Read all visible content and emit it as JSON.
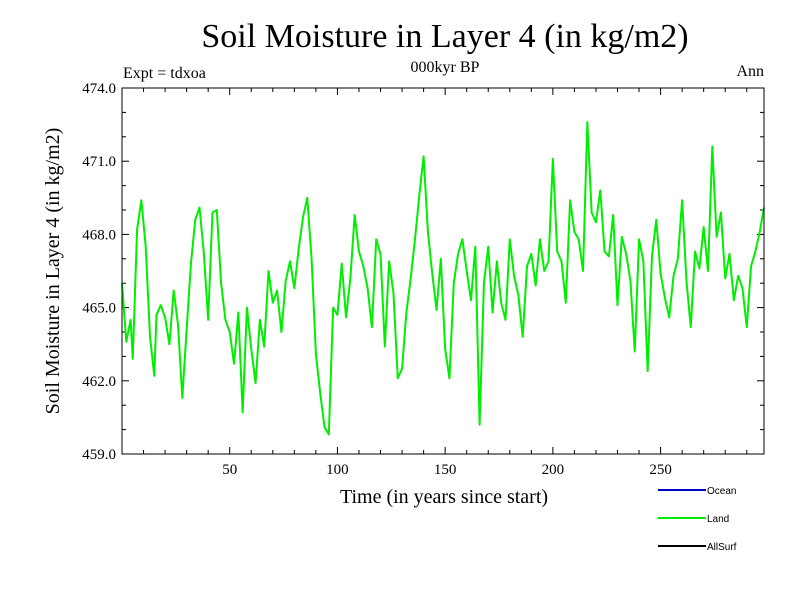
{
  "chart_data": {
    "type": "line",
    "title": "Soil Moisture in Layer 4 (in kg/m2)",
    "subtitle": "000kyr BP",
    "left_note": "Expt = tdxoa",
    "right_note": "Ann",
    "xlabel": "Time (in years since start)",
    "ylabel": "Soil Moisture in Layer 4 (in kg/m2)",
    "xlim": [
      0,
      298
    ],
    "ylim": [
      459.0,
      474.0
    ],
    "x_ticks": [
      50,
      100,
      150,
      200,
      250
    ],
    "x_tick_labels": [
      "50",
      "100",
      "150",
      "200",
      "250"
    ],
    "y_ticks": [
      459.0,
      462.0,
      465.0,
      468.0,
      471.0,
      474.0
    ],
    "y_tick_labels": [
      "459.0",
      "462.0",
      "465.0",
      "468.0",
      "471.0",
      "474.0"
    ],
    "legend": {
      "placement": "bottom-right",
      "entries": [
        {
          "label": "Ocean",
          "color": "#0000cc"
        },
        {
          "label": "Land",
          "color": "#00ee00"
        },
        {
          "label": "AllSurf",
          "color": "#000000"
        }
      ]
    },
    "series": [
      {
        "color": "#00ee00",
        "x": [
          0,
          2,
          4,
          5,
          7,
          9,
          11,
          13,
          15,
          16,
          18,
          20,
          22,
          24,
          26,
          28,
          30,
          32,
          34,
          36,
          38,
          40,
          42,
          44,
          46,
          48,
          50,
          52,
          54,
          56,
          58,
          60,
          62,
          64,
          66,
          68,
          70,
          72,
          74,
          76,
          78,
          80,
          82,
          84,
          86,
          88,
          90,
          92,
          94,
          96,
          98,
          100,
          102,
          104,
          106,
          108,
          110,
          112,
          114,
          116,
          118,
          120,
          122,
          124,
          126,
          128,
          130,
          132,
          134,
          136,
          138,
          140,
          142,
          144,
          146,
          148,
          150,
          152,
          154,
          156,
          158,
          160,
          162,
          164,
          166,
          168,
          170,
          172,
          174,
          176,
          178,
          180,
          182,
          184,
          186,
          188,
          190,
          192,
          194,
          196,
          198,
          200,
          202,
          204,
          206,
          208,
          210,
          212,
          214,
          216,
          218,
          220,
          222,
          224,
          226,
          228,
          230,
          232,
          234,
          236,
          238,
          240,
          242,
          244,
          246,
          248,
          250,
          252,
          254,
          256,
          258,
          260,
          262,
          264,
          266,
          268,
          270,
          272,
          274,
          276,
          278,
          280,
          282,
          284,
          286,
          288,
          290,
          292,
          294,
          296,
          298
        ],
        "y": [
          466.0,
          463.6,
          464.5,
          462.9,
          468.2,
          469.4,
          467.5,
          463.8,
          462.2,
          464.7,
          465.1,
          464.6,
          463.5,
          465.7,
          464.3,
          461.3,
          464.1,
          466.8,
          468.6,
          469.1,
          467.2,
          464.5,
          468.9,
          469.0,
          466.0,
          464.5,
          464.0,
          462.7,
          464.8,
          460.7,
          465.0,
          463.3,
          461.9,
          464.5,
          463.4,
          466.5,
          465.2,
          465.7,
          464.0,
          466.1,
          466.9,
          465.8,
          467.4,
          468.7,
          469.5,
          467.0,
          463.1,
          461.5,
          460.1,
          459.8,
          465.0,
          464.7,
          466.8,
          464.6,
          466.2,
          468.8,
          467.3,
          466.7,
          465.8,
          464.2,
          467.8,
          467.2,
          463.4,
          466.9,
          465.6,
          462.1,
          462.5,
          464.8,
          466.2,
          467.8,
          469.6,
          471.2,
          468.1,
          466.4,
          464.9,
          467.0,
          463.3,
          462.1,
          466.0,
          467.2,
          467.8,
          466.5,
          465.3,
          467.5,
          460.2,
          466.0,
          467.5,
          464.8,
          466.9,
          465.2,
          464.5,
          467.8,
          466.3,
          465.5,
          463.8,
          466.7,
          467.2,
          465.9,
          467.8,
          466.5,
          466.9,
          471.1,
          467.3,
          466.9,
          465.2,
          469.4,
          468.1,
          467.8,
          466.5,
          472.6,
          468.9,
          468.5,
          469.8,
          467.3,
          467.1,
          468.8,
          465.1,
          467.9,
          467.2,
          466.1,
          463.2,
          467.8,
          466.9,
          462.4,
          467.1,
          468.6,
          466.4,
          465.4,
          464.6,
          466.3,
          467.0,
          469.4,
          466.1,
          464.2,
          467.3,
          466.6,
          468.3,
          466.5,
          471.6,
          467.9,
          468.9,
          466.2,
          467.2,
          465.3,
          466.3,
          465.8,
          464.2,
          466.7,
          467.3,
          468.1,
          469.1
        ]
      }
    ]
  }
}
